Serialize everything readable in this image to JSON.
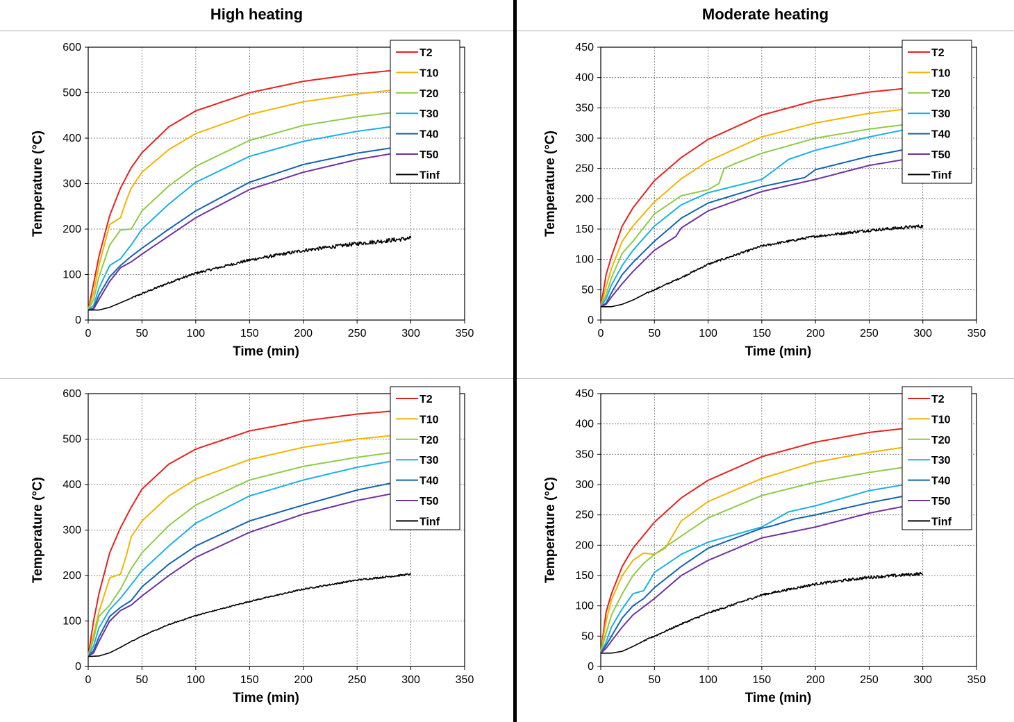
{
  "headers": {
    "left": "High heating",
    "right": "Moderate heating"
  },
  "colors": {
    "T2": "#e8201c",
    "T10": "#f4b400",
    "T20": "#8ccc46",
    "T30": "#1ab0e8",
    "T40": "#1264ae",
    "T50": "#7030a0",
    "Tinf": "#000000"
  },
  "chart_data": [
    {
      "type": "line",
      "panel": "top-left",
      "xlabel": "Time (min)",
      "ylabel": "Temperature (°C)",
      "xlim": [
        0,
        350
      ],
      "ylim": [
        0,
        600
      ],
      "xticks": [
        0,
        50,
        100,
        150,
        200,
        250,
        300,
        350
      ],
      "yticks": [
        0,
        100,
        200,
        300,
        400,
        500,
        600
      ],
      "grid": true,
      "legend": "top-right",
      "series": [
        {
          "name": "T2",
          "noise": 0,
          "x": [
            0,
            5,
            10,
            20,
            30,
            40,
            50,
            75,
            100,
            150,
            200,
            250,
            300
          ],
          "y": [
            22,
            80,
            140,
            230,
            290,
            335,
            368,
            425,
            460,
            500,
            525,
            541,
            553
          ]
        },
        {
          "name": "T10",
          "noise": 0,
          "x": [
            0,
            5,
            10,
            20,
            30,
            35,
            40,
            50,
            75,
            100,
            150,
            200,
            250,
            300
          ],
          "y": [
            22,
            60,
            120,
            210,
            225,
            260,
            290,
            325,
            375,
            410,
            452,
            480,
            497,
            510
          ]
        },
        {
          "name": "T20",
          "noise": 0,
          "x": [
            0,
            5,
            10,
            20,
            30,
            40,
            50,
            75,
            100,
            150,
            200,
            250,
            300
          ],
          "y": [
            22,
            45,
            95,
            165,
            198,
            200,
            240,
            295,
            338,
            395,
            428,
            447,
            461
          ]
        },
        {
          "name": "T30",
          "noise": 0,
          "x": [
            0,
            5,
            10,
            20,
            30,
            40,
            50,
            75,
            100,
            150,
            200,
            250,
            300
          ],
          "y": [
            22,
            32,
            70,
            120,
            135,
            165,
            200,
            255,
            303,
            360,
            393,
            415,
            431
          ]
        },
        {
          "name": "T40",
          "noise": 0,
          "x": [
            0,
            5,
            10,
            20,
            30,
            40,
            50,
            75,
            100,
            150,
            200,
            250,
            300
          ],
          "y": [
            22,
            26,
            55,
            95,
            120,
            140,
            158,
            200,
            240,
            303,
            342,
            367,
            385
          ]
        },
        {
          "name": "T50",
          "noise": 0,
          "x": [
            0,
            5,
            10,
            20,
            30,
            40,
            50,
            75,
            100,
            150,
            200,
            250,
            300
          ],
          "y": [
            22,
            24,
            45,
            85,
            115,
            128,
            145,
            185,
            225,
            287,
            325,
            353,
            373
          ]
        },
        {
          "name": "Tinf",
          "noise": 7,
          "x": [
            0,
            10,
            20,
            30,
            40,
            50,
            75,
            100,
            150,
            200,
            250,
            300
          ],
          "y": [
            22,
            22,
            28,
            38,
            48,
            58,
            82,
            103,
            132,
            153,
            168,
            180
          ]
        }
      ]
    },
    {
      "type": "line",
      "panel": "top-right",
      "xlabel": "Time (min)",
      "ylabel": "Temperature (°C)",
      "xlim": [
        0,
        350
      ],
      "ylim": [
        0,
        450
      ],
      "xticks": [
        0,
        50,
        100,
        150,
        200,
        250,
        300,
        350
      ],
      "yticks": [
        0,
        50,
        100,
        150,
        200,
        250,
        300,
        350,
        400,
        450
      ],
      "grid": true,
      "legend": "top-right",
      "series": [
        {
          "name": "T2",
          "noise": 0,
          "x": [
            0,
            5,
            10,
            20,
            30,
            50,
            75,
            100,
            150,
            200,
            250,
            300
          ],
          "y": [
            22,
            75,
            105,
            155,
            185,
            230,
            268,
            298,
            338,
            362,
            376,
            385
          ]
        },
        {
          "name": "T10",
          "noise": 0,
          "x": [
            0,
            5,
            10,
            20,
            30,
            50,
            60,
            75,
            100,
            150,
            200,
            250,
            300
          ],
          "y": [
            22,
            55,
            85,
            130,
            155,
            195,
            210,
            233,
            262,
            302,
            325,
            341,
            351
          ]
        },
        {
          "name": "T20",
          "noise": 0,
          "x": [
            0,
            5,
            10,
            20,
            30,
            50,
            75,
            100,
            110,
            115,
            125,
            150,
            200,
            250,
            300
          ],
          "y": [
            22,
            42,
            70,
            110,
            130,
            175,
            205,
            215,
            225,
            250,
            258,
            275,
            300,
            315,
            326
          ]
        },
        {
          "name": "T30",
          "noise": 0,
          "x": [
            0,
            5,
            10,
            20,
            30,
            50,
            75,
            100,
            150,
            160,
            175,
            200,
            250,
            300
          ],
          "y": [
            22,
            35,
            58,
            90,
            115,
            155,
            190,
            210,
            232,
            245,
            265,
            280,
            302,
            320
          ]
        },
        {
          "name": "T40",
          "noise": 0,
          "x": [
            0,
            5,
            10,
            20,
            30,
            50,
            75,
            100,
            150,
            190,
            200,
            250,
            300
          ],
          "y": [
            22,
            28,
            45,
            75,
            95,
            130,
            168,
            193,
            220,
            235,
            248,
            270,
            287
          ]
        },
        {
          "name": "T50",
          "noise": 0,
          "x": [
            0,
            5,
            10,
            20,
            30,
            50,
            70,
            75,
            100,
            150,
            200,
            250,
            300
          ],
          "y": [
            22,
            26,
            38,
            60,
            80,
            115,
            138,
            152,
            180,
            212,
            232,
            255,
            270
          ]
        },
        {
          "name": "Tinf",
          "noise": 4,
          "x": [
            0,
            10,
            20,
            30,
            40,
            50,
            75,
            100,
            150,
            200,
            250,
            300
          ],
          "y": [
            22,
            22,
            26,
            33,
            42,
            50,
            70,
            92,
            122,
            138,
            148,
            155
          ]
        }
      ]
    },
    {
      "type": "line",
      "panel": "bottom-left",
      "xlabel": "Time (min)",
      "ylabel": "Temperature (°C)",
      "xlim": [
        0,
        350
      ],
      "ylim": [
        0,
        600
      ],
      "xticks": [
        0,
        50,
        100,
        150,
        200,
        250,
        300,
        350
      ],
      "yticks": [
        0,
        100,
        200,
        300,
        400,
        500,
        600
      ],
      "grid": true,
      "legend": "top-right",
      "series": [
        {
          "name": "T2",
          "noise": 0,
          "x": [
            0,
            5,
            10,
            20,
            30,
            40,
            50,
            75,
            100,
            150,
            200,
            250,
            300
          ],
          "y": [
            22,
            100,
            160,
            250,
            305,
            350,
            390,
            445,
            478,
            518,
            540,
            555,
            565
          ]
        },
        {
          "name": "T10",
          "noise": 0,
          "x": [
            0,
            5,
            10,
            20,
            30,
            35,
            40,
            50,
            75,
            100,
            150,
            200,
            250,
            300
          ],
          "y": [
            22,
            70,
            120,
            195,
            203,
            240,
            285,
            320,
            375,
            412,
            455,
            482,
            500,
            512
          ]
        },
        {
          "name": "T20",
          "noise": 0,
          "x": [
            0,
            5,
            10,
            20,
            30,
            40,
            50,
            75,
            100,
            150,
            200,
            250,
            300
          ],
          "y": [
            22,
            60,
            110,
            135,
            170,
            215,
            250,
            310,
            355,
            410,
            440,
            460,
            476
          ]
        },
        {
          "name": "T30",
          "noise": 0,
          "x": [
            0,
            5,
            10,
            20,
            30,
            40,
            50,
            75,
            100,
            150,
            200,
            250,
            300
          ],
          "y": [
            22,
            45,
            85,
            125,
            150,
            180,
            210,
            265,
            315,
            375,
            410,
            438,
            459
          ]
        },
        {
          "name": "T40",
          "noise": 0,
          "x": [
            0,
            5,
            10,
            20,
            30,
            40,
            50,
            75,
            100,
            150,
            200,
            250,
            300
          ],
          "y": [
            22,
            35,
            65,
            110,
            130,
            145,
            175,
            225,
            265,
            320,
            355,
            388,
            412
          ]
        },
        {
          "name": "T50",
          "noise": 0,
          "x": [
            0,
            5,
            10,
            20,
            30,
            40,
            50,
            75,
            100,
            150,
            200,
            250,
            300
          ],
          "y": [
            22,
            30,
            55,
            100,
            123,
            135,
            155,
            200,
            240,
            295,
            335,
            365,
            388
          ]
        },
        {
          "name": "Tinf",
          "noise": 3,
          "x": [
            0,
            10,
            20,
            30,
            40,
            50,
            75,
            100,
            150,
            200,
            250,
            300
          ],
          "y": [
            22,
            23,
            30,
            42,
            55,
            67,
            92,
            112,
            143,
            170,
            190,
            203
          ]
        }
      ]
    },
    {
      "type": "line",
      "panel": "bottom-right",
      "xlabel": "Time (min)",
      "ylabel": "Temperature (°C)",
      "xlim": [
        0,
        350
      ],
      "ylim": [
        0,
        450
      ],
      "xticks": [
        0,
        50,
        100,
        150,
        200,
        250,
        300,
        350
      ],
      "yticks": [
        0,
        50,
        100,
        150,
        200,
        250,
        300,
        350,
        400,
        450
      ],
      "grid": true,
      "legend": "top-right",
      "series": [
        {
          "name": "T2",
          "noise": 0,
          "x": [
            0,
            5,
            10,
            20,
            30,
            50,
            75,
            100,
            150,
            200,
            250,
            300
          ],
          "y": [
            22,
            90,
            120,
            165,
            195,
            238,
            278,
            307,
            346,
            370,
            386,
            396
          ]
        },
        {
          "name": "T10",
          "noise": 0,
          "x": [
            0,
            5,
            10,
            20,
            30,
            40,
            50,
            60,
            75,
            100,
            150,
            200,
            250,
            300
          ],
          "y": [
            22,
            75,
            110,
            150,
            175,
            187,
            185,
            195,
            240,
            272,
            310,
            337,
            353,
            366
          ]
        },
        {
          "name": "T20",
          "noise": 0,
          "x": [
            0,
            5,
            10,
            20,
            30,
            40,
            50,
            75,
            100,
            150,
            200,
            250,
            300
          ],
          "y": [
            22,
            55,
            85,
            120,
            150,
            170,
            185,
            215,
            245,
            282,
            304,
            320,
            333
          ]
        },
        {
          "name": "T30",
          "noise": 0,
          "x": [
            0,
            5,
            10,
            20,
            30,
            40,
            50,
            75,
            100,
            150,
            175,
            200,
            250,
            300
          ],
          "y": [
            22,
            40,
            65,
            95,
            120,
            125,
            155,
            185,
            205,
            230,
            255,
            265,
            290,
            305
          ]
        },
        {
          "name": "T40",
          "noise": 0,
          "x": [
            0,
            5,
            10,
            20,
            30,
            40,
            50,
            75,
            100,
            150,
            160,
            180,
            200,
            250,
            300
          ],
          "y": [
            22,
            35,
            50,
            80,
            100,
            112,
            130,
            165,
            195,
            228,
            232,
            243,
            250,
            270,
            287
          ]
        },
        {
          "name": "T50",
          "noise": 0,
          "x": [
            0,
            5,
            10,
            20,
            30,
            50,
            75,
            100,
            150,
            200,
            250,
            300
          ],
          "y": [
            22,
            30,
            42,
            65,
            85,
            112,
            150,
            175,
            212,
            230,
            253,
            270
          ]
        },
        {
          "name": "Tinf",
          "noise": 4,
          "x": [
            0,
            10,
            20,
            30,
            40,
            50,
            75,
            100,
            150,
            200,
            250,
            300
          ],
          "y": [
            22,
            22,
            25,
            33,
            42,
            50,
            70,
            88,
            118,
            136,
            147,
            153
          ]
        }
      ]
    }
  ]
}
